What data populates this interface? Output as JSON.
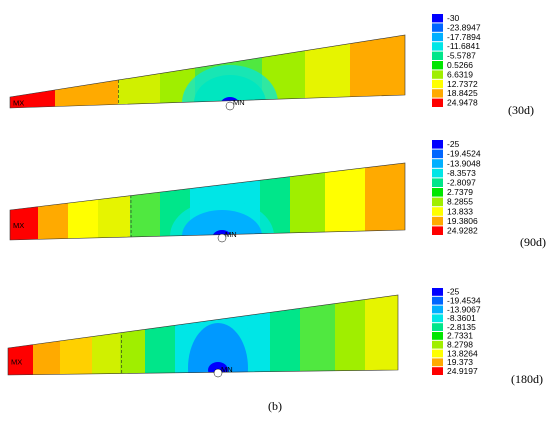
{
  "panels": [
    {
      "legend": [
        -30,
        -23.8947,
        -17.7894,
        -11.6841,
        -5.5787,
        0.5266,
        6.6319,
        12.7372,
        18.8425,
        24.9478
      ],
      "label": "(30d)",
      "max_marker": "MX",
      "min_marker": "MN"
    },
    {
      "legend": [
        -25,
        -19.4524,
        -13.9048,
        -8.3573,
        -2.8097,
        2.7379,
        8.2855,
        13.833,
        19.3806,
        24.9282
      ],
      "label": "(90d)",
      "max_marker": "MX",
      "min_marker": "MN"
    },
    {
      "legend": [
        -25,
        -19.4534,
        -13.9067,
        -8.3601,
        -2.8135,
        2.7331,
        8.2798,
        13.8264,
        19.373,
        24.9197
      ],
      "label": "(180d)",
      "max_marker": "MX",
      "min_marker": "MN"
    }
  ],
  "caption": "(b)"
}
